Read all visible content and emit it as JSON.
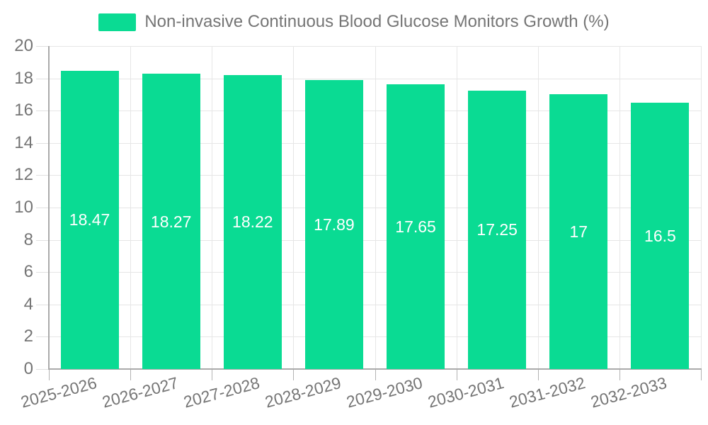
{
  "chart_data": {
    "type": "bar",
    "title": "Non-invasive Continuous Blood Glucose Monitors Growth (%)",
    "categories": [
      "2025-2026",
      "2026-2027",
      "2027-2028",
      "2028-2029",
      "2029-2030",
      "2030-2031",
      "2031-2032",
      "2032-2033"
    ],
    "values": [
      18.47,
      18.27,
      18.22,
      17.89,
      17.65,
      17.25,
      17,
      16.5
    ],
    "value_labels": [
      "18.47",
      "18.27",
      "18.22",
      "17.89",
      "17.65",
      "17.25",
      "17",
      "16.5"
    ],
    "xlabel": "",
    "ylabel": "",
    "ylim": [
      0,
      20
    ],
    "ytick_step": 2,
    "ytick_labels": [
      "0",
      "2",
      "4",
      "6",
      "8",
      "10",
      "12",
      "14",
      "16",
      "18",
      "20"
    ],
    "grid": true,
    "legend_position": "top-center",
    "colors": {
      "bar": "#0adb93",
      "value_label": "#ffffff",
      "axis_text": "#757575",
      "legend_text": "#757575",
      "gridline": "#e6e6e6",
      "axis_line": "#aaaaaa",
      "background": "#ffffff"
    }
  }
}
